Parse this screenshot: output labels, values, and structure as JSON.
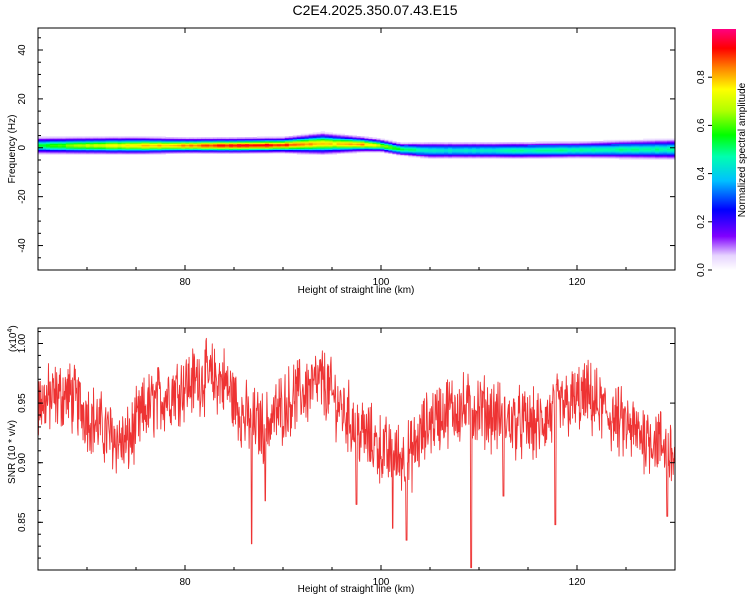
{
  "title": "C2E4.2025.350.07.43.E15",
  "chart_data": [
    {
      "type": "heatmap",
      "xlabel": "Height of straight line (km)",
      "ylabel": "Frequency (Hz)",
      "xlim": [
        65,
        130
      ],
      "ylim": [
        -50,
        49
      ],
      "xticks": [
        "80",
        "100",
        "120"
      ],
      "yticks": [
        "-40",
        "-20",
        "0",
        "20",
        "40"
      ],
      "colorbar": {
        "label": "Normalized spectral amplitude",
        "range": [
          0.0,
          1.0
        ],
        "ticks": [
          "0.0",
          "0.2",
          "0.4",
          "0.6",
          "0.8"
        ]
      },
      "ridge": {
        "x": [
          65,
          70,
          75,
          80,
          85,
          90,
          94,
          98,
          100,
          102,
          105,
          110,
          115,
          120,
          125,
          130
        ],
        "center_hz": [
          1.0,
          1.0,
          1.0,
          1.0,
          1.0,
          1.2,
          1.8,
          1.5,
          1.0,
          -0.5,
          -1.0,
          -1.0,
          -1.0,
          -0.8,
          -0.6,
          -0.5
        ],
        "width_hz": [
          4,
          4,
          4,
          3.5,
          3.5,
          3.5,
          5,
          3.5,
          3,
          3,
          4,
          4,
          4,
          4,
          4.5,
          5
        ],
        "peak": [
          0.55,
          0.7,
          0.8,
          0.85,
          0.97,
          0.95,
          0.8,
          0.85,
          0.7,
          0.55,
          0.45,
          0.45,
          0.5,
          0.5,
          0.5,
          0.5
        ]
      }
    },
    {
      "type": "line",
      "xlabel": "Height of straight line (km)",
      "ylabel": "SNR (10 * v/v)",
      "scale_label": "(x10",
      "scale_exp": "4",
      "xlim": [
        65,
        130
      ],
      "ylim": [
        0.81,
        1.013
      ],
      "xticks": [
        "80",
        "100",
        "120"
      ],
      "yticks": [
        "0.85",
        "0.90",
        "0.95",
        "1.00"
      ],
      "line_color": "#ee3333",
      "trend": {
        "x": [
          65,
          68,
          72,
          74,
          76,
          79,
          82,
          84,
          86,
          88,
          91,
          94,
          96,
          98,
          101,
          103,
          105,
          107,
          110,
          113,
          116,
          118,
          121,
          124,
          126,
          128,
          130
        ],
        "y": [
          0.95,
          0.958,
          0.925,
          0.915,
          0.945,
          0.962,
          0.972,
          0.968,
          0.938,
          0.93,
          0.955,
          0.968,
          0.945,
          0.925,
          0.905,
          0.905,
          0.935,
          0.945,
          0.945,
          0.935,
          0.93,
          0.945,
          0.955,
          0.935,
          0.925,
          0.92,
          0.905
        ]
      },
      "spikes": [
        {
          "x": 86.8,
          "y": 0.832
        },
        {
          "x": 88.2,
          "y": 0.868
        },
        {
          "x": 97.5,
          "y": 0.865
        },
        {
          "x": 101.2,
          "y": 0.845
        },
        {
          "x": 102.6,
          "y": 0.835
        },
        {
          "x": 109.2,
          "y": 0.812
        },
        {
          "x": 112.5,
          "y": 0.872
        },
        {
          "x": 117.8,
          "y": 0.848
        },
        {
          "x": 129.2,
          "y": 0.855
        }
      ]
    }
  ]
}
